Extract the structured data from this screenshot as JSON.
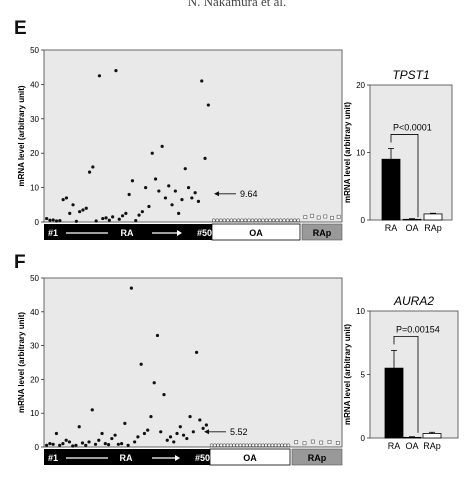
{
  "header": {
    "text": "N. Nakamura et al."
  },
  "panels": {
    "E": {
      "label": "E"
    },
    "F": {
      "label": "F"
    }
  },
  "chart_data": [
    {
      "panel": "E",
      "type": "scatter",
      "ylabel": "mRNA level (arbitrary unit)",
      "ylim": [
        0,
        50
      ],
      "yticks": [
        0,
        10,
        20,
        30,
        40,
        50
      ],
      "groups": [
        "#1",
        "RA",
        "#50",
        "OA",
        "RAp"
      ],
      "annotation": "9.64",
      "RA": [
        1.0,
        0.5,
        0.6,
        0.3,
        0.4,
        6.5,
        7.0,
        2.5,
        5.0,
        0.2,
        3.0,
        3.5,
        4.0,
        14.5,
        16.0,
        0.3,
        42.5,
        1.0,
        1.2,
        0.5,
        1.5,
        44.0,
        0.8,
        1.8,
        2.5,
        8.0,
        12.0,
        0.4,
        2.0,
        3.0,
        10.0,
        4.5,
        20.0,
        12.5,
        9.0,
        22.0,
        7.0,
        10.5,
        5.0,
        9.0,
        2.5,
        6.5,
        15.5,
        10.0,
        7.0,
        8.5,
        6.0,
        41.0,
        18.5,
        34.0
      ],
      "OA": [
        0.05,
        0.05,
        0.05,
        0.05,
        0.05,
        0.05,
        0.05,
        0.05,
        0.05,
        0.05,
        0.05,
        0.05,
        0.05,
        0.05,
        0.05,
        0.05,
        0.05,
        0.05,
        0.05,
        0.05,
        0.05,
        0.05,
        0.05,
        0.05,
        0.05
      ],
      "RAp": [
        1.0,
        1.4,
        0.9,
        1.2,
        0.8,
        1.1
      ]
    },
    {
      "panel": "E-inset",
      "type": "bar",
      "title": "TPST1",
      "ylabel": "mRNA level (arbitrary unit)",
      "ylim": [
        0,
        20
      ],
      "yticks": [
        0,
        10,
        20
      ],
      "categories": [
        "RA",
        "OA",
        "RAp"
      ],
      "values": [
        9.0,
        0.1,
        0.9
      ],
      "errors": [
        1.6,
        0.1,
        0.1
      ],
      "pvalue": "P<0.0001"
    },
    {
      "panel": "F",
      "type": "scatter",
      "ylabel": "mRNA level (arbitrary unit)",
      "ylim": [
        0,
        50
      ],
      "yticks": [
        0,
        10,
        20,
        30,
        40,
        50
      ],
      "groups": [
        "#1",
        "RA",
        "#50",
        "OA",
        "RAp"
      ],
      "annotation": "5.52",
      "RA": [
        0.5,
        1.0,
        0.8,
        4.0,
        0.5,
        1.0,
        2.0,
        1.5,
        0.3,
        0.5,
        6.0,
        1.2,
        0.5,
        1.5,
        11.0,
        0.8,
        2.0,
        4.0,
        1.0,
        0.7,
        2.5,
        3.5,
        0.8,
        1.0,
        7.0,
        0.5,
        47.0,
        1.5,
        3.0,
        24.5,
        4.0,
        5.0,
        9.0,
        19.0,
        33.0,
        4.5,
        15.5,
        2.0,
        3.0,
        1.5,
        4.0,
        6.0,
        3.5,
        2.5,
        9.0,
        4.5,
        28.0,
        8.0,
        5.5,
        6.5
      ],
      "OA": [
        0.05,
        0.05,
        0.05,
        0.05,
        0.05,
        0.05,
        0.05,
        0.05,
        0.05,
        0.05,
        0.05,
        0.05,
        0.05,
        0.05,
        0.05,
        0.05,
        0.05,
        0.05,
        0.05,
        0.05,
        0.05,
        0.05,
        0.05,
        0.05,
        0.05
      ],
      "RAp": [
        1.0,
        0.7,
        1.2,
        0.9,
        1.1,
        0.8
      ]
    },
    {
      "panel": "F-inset",
      "type": "bar",
      "title": "AURA2",
      "ylabel": "mRNA level (arbitrary unit)",
      "ylim": [
        0,
        10
      ],
      "yticks": [
        0,
        5,
        10
      ],
      "categories": [
        "RA",
        "OA",
        "RAp"
      ],
      "values": [
        5.5,
        0.05,
        0.35
      ],
      "errors": [
        1.4,
        0.05,
        0.1
      ],
      "pvalue": "P=0.00154"
    }
  ]
}
